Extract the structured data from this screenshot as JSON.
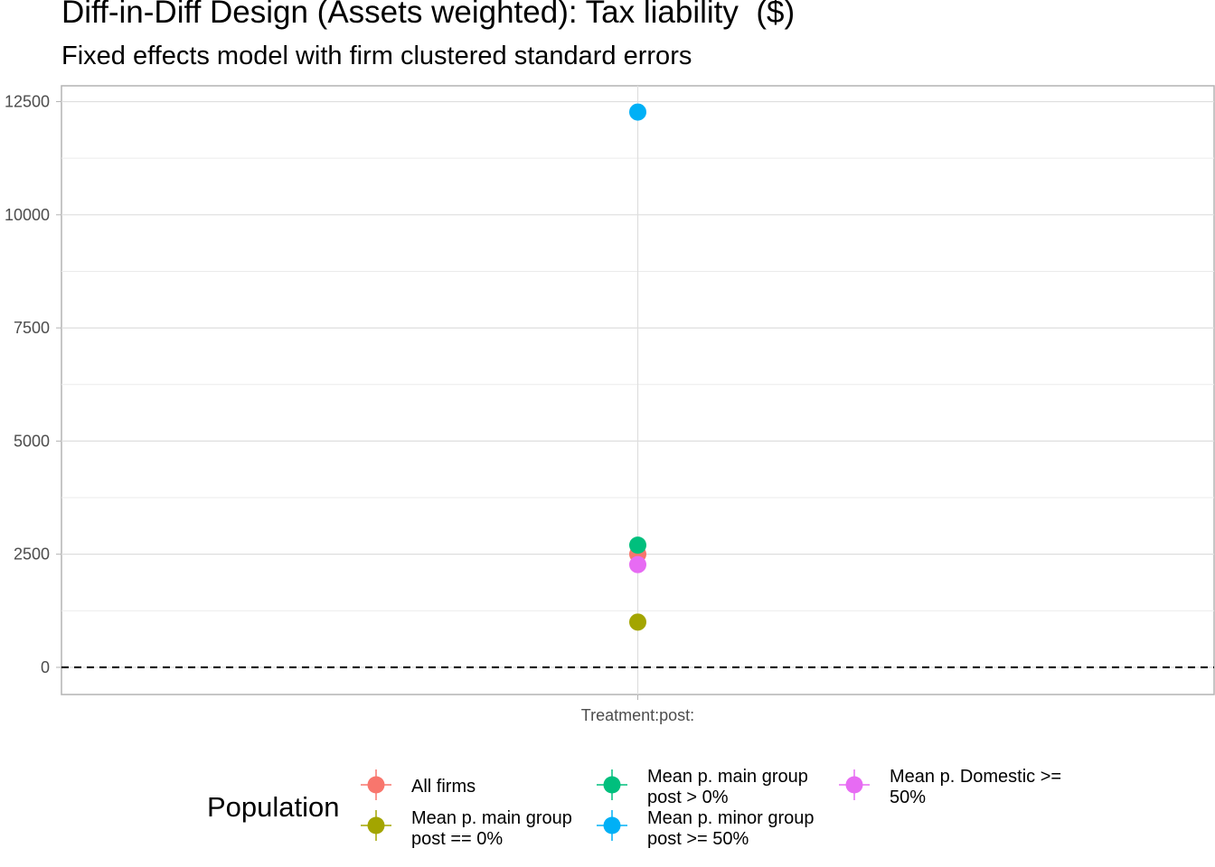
{
  "chart_data": {
    "type": "scatter",
    "title": "Diff-in-Diff Design (Assets weighted): Tax liability  ($)",
    "subtitle": "Fixed effects model with firm clustered standard errors",
    "xlabel": "",
    "ylabel": "",
    "categories": [
      "Treatment:post:"
    ],
    "ylim": [
      -600,
      12850
    ],
    "y_ticks": [
      0,
      2500,
      5000,
      7500,
      10000,
      12500
    ],
    "y_tick_labels": [
      "0",
      "2500",
      "5000",
      "7500",
      "10000",
      "12500"
    ],
    "grid": true,
    "reference_line": {
      "y": 0,
      "style": "dashed"
    },
    "legend": {
      "title": "Population",
      "position": "bottom"
    },
    "series": [
      {
        "name": "All firms",
        "color": "#F8766D",
        "values": [
          2500
        ]
      },
      {
        "name": "Mean p. main group post == 0%",
        "color": "#A3A500",
        "values": [
          1000
        ]
      },
      {
        "name": "Mean p. main group post > 0%",
        "color": "#00BF7D",
        "values": [
          2700
        ]
      },
      {
        "name": "Mean p. minor group post >= 50%",
        "color": "#00B0F6",
        "values": [
          12270
        ]
      },
      {
        "name": "Mean p. Domestic >= 50%",
        "color": "#E76BF3",
        "values": [
          2270
        ]
      }
    ],
    "legend_entries": [
      {
        "series": 0,
        "lines": [
          "All firms"
        ]
      },
      {
        "series": 1,
        "lines": [
          "Mean p. main group",
          "post == 0%"
        ]
      },
      {
        "series": 2,
        "lines": [
          "Mean p. main group",
          "post > 0%"
        ]
      },
      {
        "series": 3,
        "lines": [
          "Mean p. minor group",
          "post >= 50%"
        ]
      },
      {
        "series": 4,
        "lines": [
          "Mean p. Domestic >=",
          "50%"
        ]
      }
    ]
  }
}
